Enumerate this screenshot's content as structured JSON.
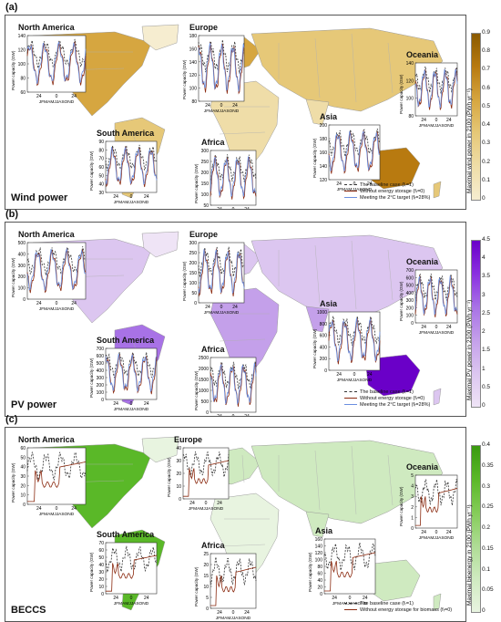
{
  "panels": [
    {
      "label": "(a)",
      "title": "Wind power",
      "colorbar": {
        "label": "Maximal wind power in 2100 (PWh yr⁻¹)",
        "ticks": [
          "0.9",
          "0.8",
          "0.7",
          "0.6",
          "0.5",
          "0.4",
          "0.3",
          "0.2",
          "0.1",
          "0"
        ],
        "colors": [
          "#8a5a00",
          "#b87a10",
          "#d6a640",
          "#e6c878",
          "#efdda8",
          "#f6edd0"
        ]
      },
      "legend": [
        {
          "label": "The baseline case (fᵣ=1)",
          "style": "dashed",
          "color": "#333333"
        },
        {
          "label": "Without energy storage (fᵣ=0)",
          "style": "solid",
          "color": "#8b2a10"
        },
        {
          "label": "Meeting the 2°C target (fᵣ=28%)",
          "style": "solid",
          "color": "#6a8fe0"
        }
      ],
      "regions": [
        {
          "name": "North America",
          "yticks": [
            "140",
            "120",
            "100",
            "80",
            "60"
          ],
          "ylabel": "Power capacity (GW)"
        },
        {
          "name": "Europe",
          "yticks": [
            "180",
            "160",
            "140",
            "120",
            "100",
            "80"
          ],
          "ylabel": "Power capacity (GW)"
        },
        {
          "name": "Oceania",
          "yticks": [
            "140",
            "120",
            "100",
            "80"
          ],
          "ylabel": "Power capacity (GW)"
        },
        {
          "name": "Asia",
          "yticks": [
            "200",
            "180",
            "160",
            "140",
            "120"
          ],
          "ylabel": "Power capacity (GW)"
        },
        {
          "name": "South America",
          "yticks": [
            "90",
            "80",
            "70",
            "60",
            "50",
            "40",
            "30"
          ],
          "ylabel": "Power capacity (GW)"
        },
        {
          "name": "Africa",
          "yticks": [
            "300",
            "250",
            "200",
            "150",
            "100",
            "50"
          ],
          "ylabel": "Power capacity (GW)"
        }
      ]
    },
    {
      "label": "(b)",
      "title": "PV power",
      "colorbar": {
        "label": "Maximal PV power in 2100 (PWh yr⁻¹)",
        "ticks": [
          "4.5",
          "4",
          "3.5",
          "3",
          "2.5",
          "2",
          "1.5",
          "1",
          "0.5",
          "0"
        ],
        "colors": [
          "#6a00c8",
          "#8a30e0",
          "#a872e6",
          "#c4a0ea",
          "#dcc6f0",
          "#efe4f6"
        ]
      },
      "legend": [
        {
          "label": "The baseline case (fᵣ=1)",
          "style": "dashed",
          "color": "#333333"
        },
        {
          "label": "Without energy storage (fᵣ=0)",
          "style": "solid",
          "color": "#8b2a10"
        },
        {
          "label": "Meeting the 2°C target (fᵣ=28%)",
          "style": "solid",
          "color": "#6a8fe0"
        }
      ],
      "regions": [
        {
          "name": "North America",
          "yticks": [
            "500",
            "400",
            "300",
            "200",
            "100",
            "0"
          ],
          "ylabel": "Power capacity (GW)"
        },
        {
          "name": "Europe",
          "yticks": [
            "300",
            "250",
            "200",
            "150",
            "100",
            "50",
            "0"
          ],
          "ylabel": "Power capacity (GW)"
        },
        {
          "name": "Oceania",
          "yticks": [
            "700",
            "600",
            "500",
            "400",
            "300",
            "200",
            "100",
            "0"
          ],
          "ylabel": "Power capacity (GW)"
        },
        {
          "name": "Asia",
          "yticks": [
            "1000",
            "800",
            "600",
            "400",
            "200",
            "0"
          ],
          "ylabel": "Power capacity (GW)"
        },
        {
          "name": "South America",
          "yticks": [
            "700",
            "600",
            "500",
            "400",
            "300",
            "200",
            "100",
            "0"
          ],
          "ylabel": "Power capacity (GW)"
        },
        {
          "name": "Africa",
          "yticks": [
            "2500",
            "2000",
            "1500",
            "1000",
            "500",
            "0"
          ],
          "ylabel": "Power capacity (GW)"
        }
      ]
    },
    {
      "label": "(c)",
      "title": "BECCS",
      "colorbar": {
        "label": "Maximal bioenergy in 2100 (PWh yr⁻¹)",
        "ticks": [
          "0.4",
          "0.35",
          "0.3",
          "0.25",
          "0.2",
          "0.15",
          "0.1",
          "0.05",
          "0"
        ],
        "colors": [
          "#3a9a10",
          "#5ab828",
          "#84cc58",
          "#aedc94",
          "#cfeac0",
          "#e8f4e0"
        ]
      },
      "legend": [
        {
          "label": "The baseline case (fᵣ=1)",
          "style": "dashed",
          "color": "#333333"
        },
        {
          "label": "Without energy storage for biomass (fᵣ=0)",
          "style": "solid",
          "color": "#8b2a10"
        }
      ],
      "regions": [
        {
          "name": "North America",
          "yticks": [
            "60",
            "50",
            "40",
            "30",
            "20",
            "10",
            "0"
          ],
          "ylabel": "Power capacity (GW)"
        },
        {
          "name": "Europe",
          "yticks": [
            "40",
            "30",
            "20",
            "10",
            "0"
          ],
          "ylabel": "Power capacity (GW)"
        },
        {
          "name": "Oceania",
          "yticks": [
            "5",
            "4",
            "3",
            "2",
            "1",
            "0"
          ],
          "ylabel": "Power capacity (GW)"
        },
        {
          "name": "Asia",
          "yticks": [
            "160",
            "140",
            "120",
            "100",
            "80",
            "60",
            "40",
            "20",
            "0"
          ],
          "ylabel": "Power capacity (GW)"
        },
        {
          "name": "South America",
          "yticks": [
            "70",
            "60",
            "50",
            "40",
            "30",
            "20",
            "10",
            "0"
          ],
          "ylabel": "Power capacity (GW)"
        },
        {
          "name": "Africa",
          "yticks": [
            "25",
            "20",
            "15",
            "10",
            "5",
            "0"
          ],
          "ylabel": "Power capacity (GW)"
        }
      ]
    }
  ],
  "mini_xticks": [
    "24",
    "0",
    "24"
  ],
  "mini_months": "JFMAMJJASOND"
}
